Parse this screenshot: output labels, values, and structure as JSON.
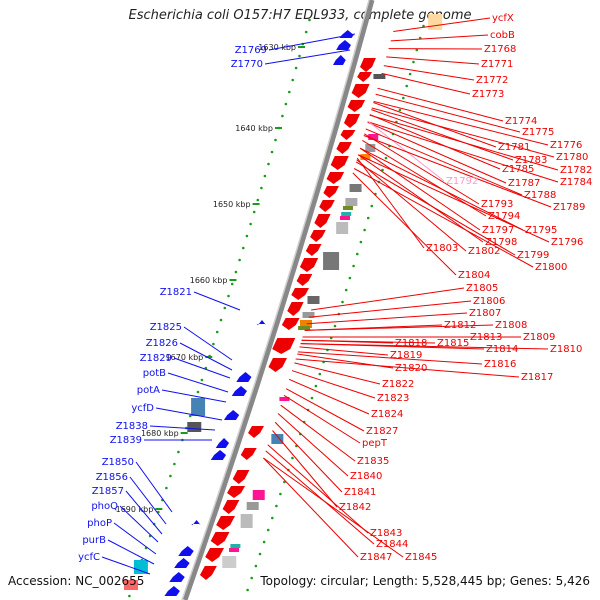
{
  "title": "Escherichia coli O157:H7 EDL933, complete genome",
  "accession": "Accession: NC_002655",
  "topology": "Topology: circular; Length: 5,528,445 bp; Genes: 5,426",
  "scale_labels": [
    "1630 kbp",
    "1640 kbp",
    "1650 kbp",
    "1660 kbp",
    "1670 kbp",
    "1680 kbp",
    "1690 kbp"
  ],
  "colors": {
    "forward": "#ee0000",
    "reverse": "#1010ee",
    "backbone": "#888888",
    "highlight": "#ff99cc"
  },
  "left_labels": [
    "Z1769",
    "Z1770",
    "Z1821",
    "Z1825",
    "Z1826",
    "Z1829",
    "potB",
    "potA",
    "ycfD",
    "Z1838",
    "Z1839",
    "Z1850",
    "Z1856",
    "Z1857",
    "phoQ",
    "phoP",
    "purB",
    "ycfC"
  ],
  "right_labels": [
    "ycfX",
    "cobB",
    "Z1768",
    "Z1771",
    "Z1772",
    "Z1773",
    "Z1774",
    "Z1775",
    "Z1776",
    "Z1781",
    "Z1780",
    "Z1783",
    "Z1782",
    "Z1785",
    "Z1784",
    "Z1787",
    "Z1792",
    "Z1788",
    "Z1789",
    "Z1793",
    "Z1794",
    "Z1795",
    "Z1797",
    "Z1796",
    "Z1798",
    "Z1799",
    "Z1803",
    "Z1802",
    "Z1800",
    "Z1804",
    "Z1805",
    "Z1806",
    "Z1807",
    "Z1808",
    "Z1812",
    "Z1809",
    "Z1813",
    "Z1810",
    "Z1815",
    "Z1814",
    "Z1818",
    "Z1819",
    "Z1816",
    "Z1820",
    "Z1817",
    "Z1822",
    "Z1823",
    "Z1824",
    "Z1827",
    "pepT",
    "Z1835",
    "Z1840",
    "Z1841",
    "Z1842",
    "Z1843",
    "Z1844",
    "Z1847",
    "Z1845"
  ]
}
